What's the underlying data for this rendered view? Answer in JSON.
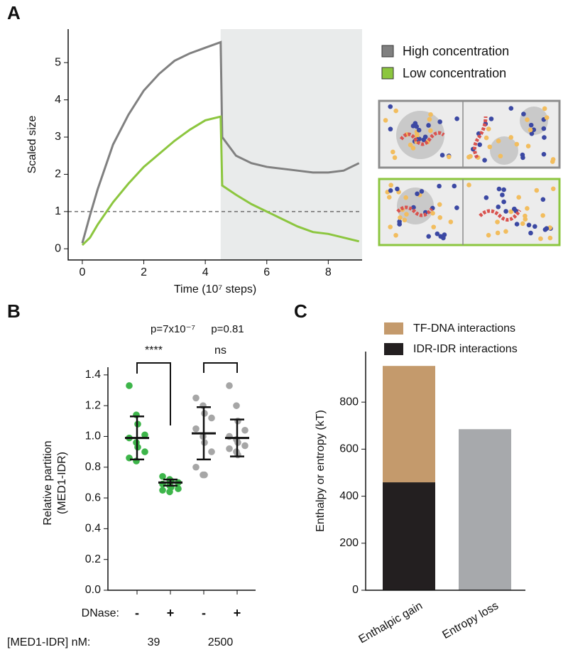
{
  "chart_data": [
    {
      "type": "line",
      "panel_label": "A",
      "x_label": "Time (10⁷ steps)",
      "y_label": "Scaled size",
      "xlim": [
        -0.46,
        9.1
      ],
      "ylim": [
        -0.3,
        5.9
      ],
      "xticks": [
        0,
        2,
        4,
        6,
        8
      ],
      "yticks": [
        0,
        1,
        2,
        3,
        4,
        5
      ],
      "reference_line": 1,
      "shade_from": 4.5,
      "shade_color": "#e9ebeb",
      "legend": "right",
      "x": [
        0,
        0.25,
        0.5,
        1,
        1.5,
        2,
        2.5,
        3,
        3.5,
        4,
        4.5,
        4.55,
        5,
        5.5,
        6,
        6.5,
        7,
        7.5,
        8,
        8.5,
        9
      ],
      "series": [
        {
          "name": "High concentration",
          "color": "#808080",
          "values": [
            0.15,
            0.9,
            1.6,
            2.8,
            3.6,
            4.25,
            4.7,
            5.05,
            5.25,
            5.4,
            5.55,
            3.0,
            2.5,
            2.3,
            2.2,
            2.15,
            2.1,
            2.05,
            2.05,
            2.1,
            2.3
          ]
        },
        {
          "name": "Low concentration",
          "color": "#8cc63f",
          "values": [
            0.1,
            0.3,
            0.65,
            1.25,
            1.75,
            2.2,
            2.55,
            2.9,
            3.2,
            3.45,
            3.55,
            1.7,
            1.45,
            1.2,
            1.0,
            0.8,
            0.6,
            0.45,
            0.4,
            0.3,
            0.2
          ]
        }
      ]
    },
    {
      "type": "dot",
      "panel_label": "B",
      "y_label": [
        "Relative partition",
        "(MED1-IDR)"
      ],
      "ylim": [
        0,
        1.45
      ],
      "yticks": [
        {
          "value": 0,
          "label": "0.0"
        },
        0.2,
        0.4,
        0.6,
        0.8,
        {
          "value": 1,
          "label": "1.0"
        },
        1.2,
        1.4
      ],
      "row_labels": [
        "DNase:",
        "[MED1-IDR] nM:"
      ],
      "categories": [
        "-",
        "+",
        "-",
        "+"
      ],
      "groups": [
        "39",
        "2500"
      ],
      "colors": [
        "#3db54a",
        "#3db54a",
        "#a6a6a6",
        "#a6a6a6"
      ],
      "points": [
        [
          1.33,
          1.14,
          1.08,
          1.01,
          0.99,
          0.96,
          0.93,
          0.9,
          0.86,
          0.84
        ],
        [
          0.74,
          0.72,
          0.71,
          0.7,
          0.69,
          0.68,
          0.67,
          0.66,
          0.65,
          0.64
        ],
        [
          1.25,
          1.2,
          1.15,
          1.12,
          1.05,
          1.0,
          0.96,
          0.9,
          0.8,
          0.75,
          0.75
        ],
        [
          1.33,
          1.2,
          1.1,
          1.04,
          1.0,
          0.98,
          0.96,
          0.94,
          0.92,
          0.9,
          0.88
        ]
      ],
      "means": [
        0.99,
        0.7,
        1.02,
        0.99
      ],
      "sd": [
        0.14,
        0.02,
        0.17,
        0.12
      ],
      "significance": [
        "****",
        "ns"
      ],
      "p_values": [
        "p=7x10⁻⁷",
        "p=0.81"
      ]
    },
    {
      "type": "stacked_bar",
      "panel_label": "C",
      "y_label": "Enthalpy or entropy (kT)",
      "ylim": [
        0,
        1015
      ],
      "yticks": [
        0,
        200,
        400,
        600,
        800
      ],
      "legend": "top",
      "categories": [
        "Enthalpic gain",
        "Entropy loss"
      ],
      "series": [
        {
          "name": "IDR-IDR interactions",
          "color": "#231f20",
          "values": [
            459,
            null
          ]
        },
        {
          "name": "TF-DNA interactions",
          "color": "#c49a6c",
          "values": [
            495,
            null
          ]
        },
        {
          "color": "#a7a9ac",
          "values": [
            null,
            685
          ]
        }
      ]
    }
  ]
}
